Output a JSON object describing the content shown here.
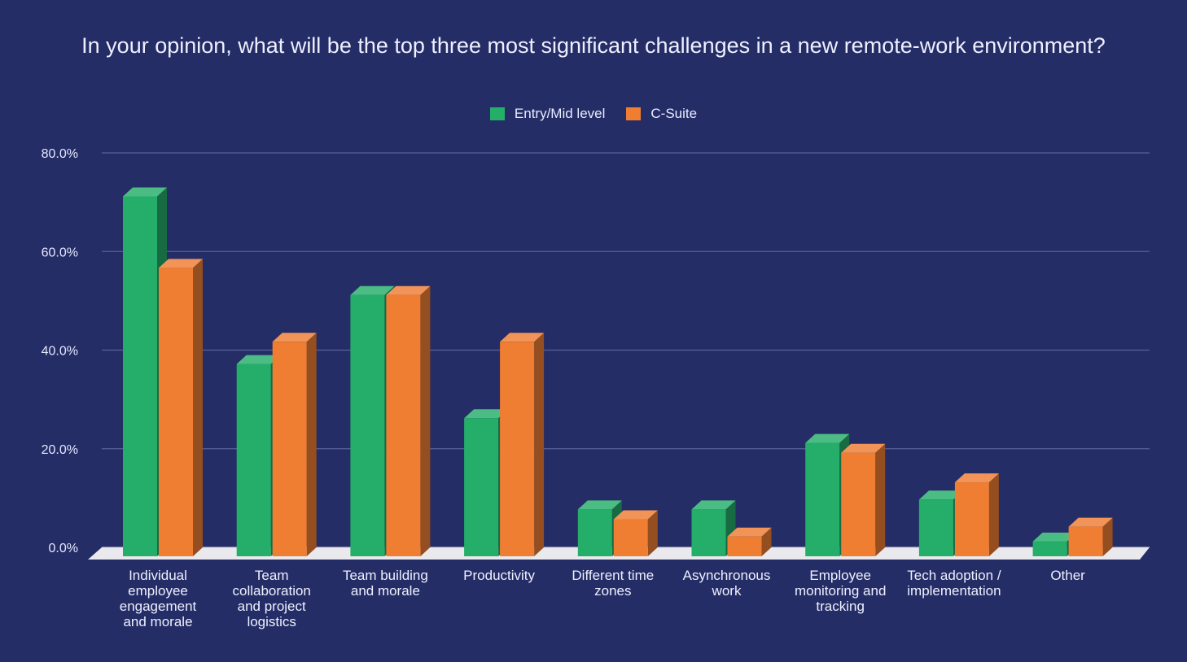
{
  "chart_data": {
    "type": "bar",
    "title": "In your opinion, what will be the top three most significant challenges in a new remote-work environment?",
    "categories": [
      [
        "Individual",
        "employee",
        "engagement",
        "and morale"
      ],
      [
        "Team",
        "collaboration",
        "and project",
        "logistics"
      ],
      [
        "Team building",
        "and morale"
      ],
      [
        "Productivity"
      ],
      [
        "Different time",
        "zones"
      ],
      [
        "Asynchronous",
        "work"
      ],
      [
        "Employee",
        "monitoring and",
        "tracking"
      ],
      [
        "Tech adoption /",
        "implementation"
      ],
      [
        "Other"
      ]
    ],
    "series": [
      {
        "name": "Entry/Mid level",
        "color": "#25ad6a",
        "values": [
          73,
          39,
          53,
          28,
          9.5,
          9.5,
          23,
          11.5,
          3
        ]
      },
      {
        "name": "C-Suite",
        "color": "#ef7d32",
        "values": [
          58.5,
          43.5,
          53,
          43.5,
          7.5,
          4,
          21,
          15,
          6
        ]
      }
    ],
    "ylim": [
      0,
      80
    ],
    "y_ticks": [
      "0.0%",
      "20.0%",
      "40.0%",
      "60.0%",
      "80.0%"
    ],
    "grid": true,
    "legend_position": "top-center",
    "background": "#252d66",
    "gridline_color": "#5a6196",
    "floor_color": "#e9e9ee"
  }
}
